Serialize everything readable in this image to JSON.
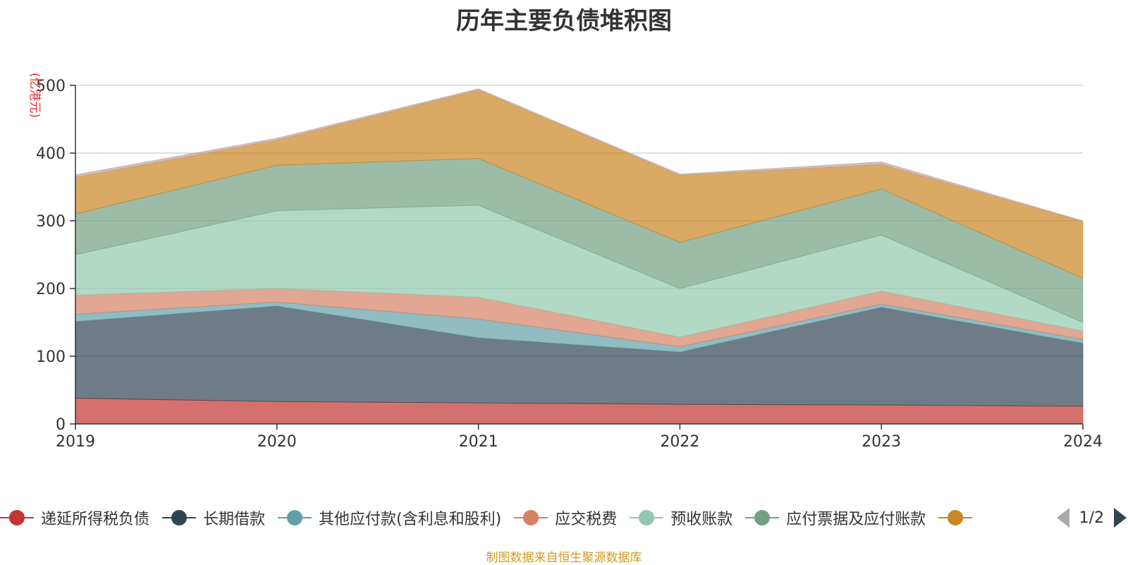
{
  "chart_data": {
    "type": "area",
    "stacked": true,
    "title": "历年主要负债堆积图",
    "ylabel": "(亿港元)",
    "x": [
      "2019",
      "2020",
      "2021",
      "2022",
      "2023",
      "2024"
    ],
    "ylim": [
      0,
      500
    ],
    "yticks": [
      0,
      100,
      200,
      300,
      400,
      500
    ],
    "grid": true,
    "legend_position": "bottom",
    "series": [
      {
        "name": "递延所得税负债",
        "color": "#c23531",
        "values": [
          38,
          33,
          31,
          29,
          28,
          26
        ]
      },
      {
        "name": "长期借款",
        "color": "#2f4554",
        "values": [
          113,
          141,
          96,
          77,
          144,
          93
        ]
      },
      {
        "name": "其他应付款(含利息和股利)",
        "color": "#61a0a8",
        "values": [
          11,
          6,
          28,
          8,
          5,
          6
        ]
      },
      {
        "name": "应交税费",
        "color": "#d48265",
        "values": [
          28,
          20,
          32,
          14,
          19,
          12
        ]
      },
      {
        "name": "预收账款",
        "color": "#91c7ae",
        "values": [
          60,
          115,
          136,
          72,
          83,
          13
        ]
      },
      {
        "name": "应付票据及应付账款",
        "color": "#749f83",
        "values": [
          60,
          67,
          69,
          68,
          68,
          65
        ]
      },
      {
        "name": "",
        "color": "#ca8622",
        "values": [
          54,
          37,
          101,
          99,
          36,
          84
        ]
      },
      {
        "name": "",
        "color": "#bda29a",
        "values": [
          4,
          3,
          2,
          2,
          4,
          1
        ]
      }
    ]
  },
  "legend": {
    "page_indicator": "1/2"
  },
  "footer": {
    "note": "制图数据来自恒生聚源数据库"
  }
}
